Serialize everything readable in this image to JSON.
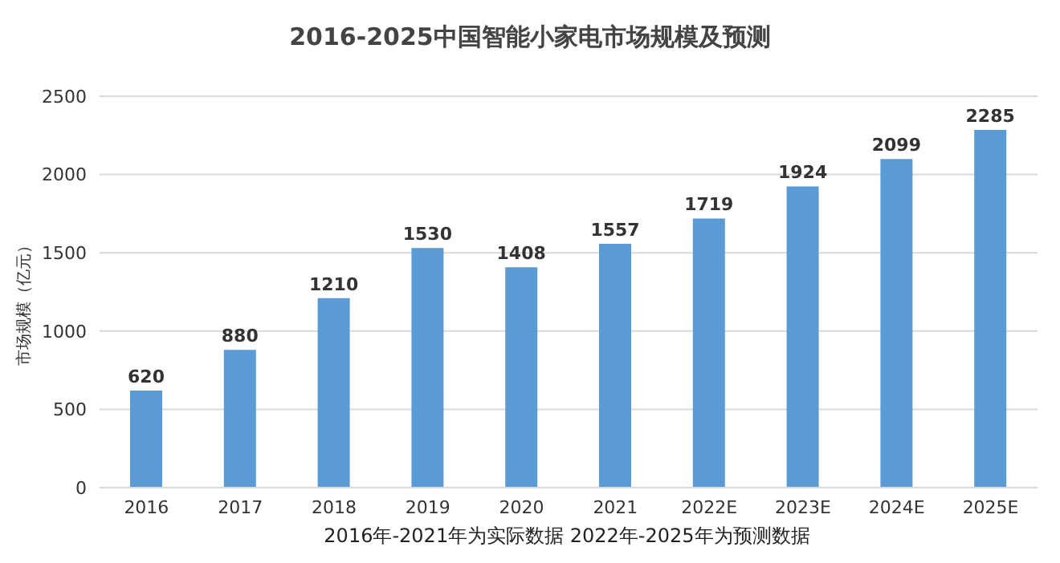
{
  "chart_data": {
    "type": "bar",
    "title": "2016-2025中国智能小家电市场规模及预测",
    "xlabel": "2016年-2021年为实际数据 2022年-2025年为预测数据",
    "ylabel": "市场规模（亿元）",
    "categories": [
      "2016",
      "2017",
      "2018",
      "2019",
      "2020",
      "2021",
      "2022E",
      "2023E",
      "2024E",
      "2025E"
    ],
    "values": [
      620,
      880,
      1210,
      1530,
      1408,
      1557,
      1719,
      1924,
      2099,
      2285
    ],
    "color": "#5b9bd5",
    "ylim": [
      0,
      2500
    ],
    "yticks": [
      0,
      500,
      1000,
      1500,
      2000,
      2500
    ],
    "grid": "y",
    "data_labels": true
  }
}
